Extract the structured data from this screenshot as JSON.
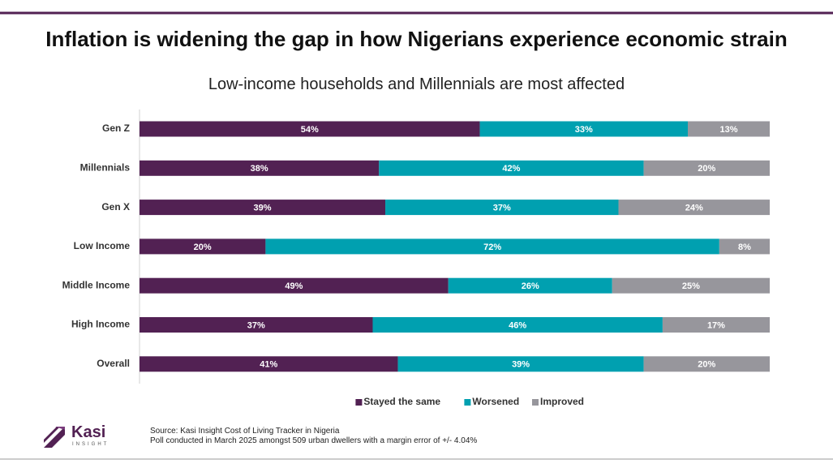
{
  "chart_data": {
    "type": "stacked-bar-horizontal",
    "title": "Inflation is widening the gap in how Nigerians experience economic strain",
    "subtitle": "Low-income households and Millennials are most affected",
    "categories": [
      "Gen Z",
      "Millennials",
      "Gen X",
      "Low Income",
      "Middle Income",
      "High Income",
      "Overall"
    ],
    "series": [
      {
        "name": "Stayed the same",
        "color": "#522153",
        "values": [
          54,
          38,
          39,
          20,
          49,
          37,
          41
        ],
        "value_labels": [
          "54%",
          "38%",
          "39%",
          "20%",
          "49%",
          "37%",
          "41%"
        ]
      },
      {
        "name": "Worsened",
        "color": "#00a0b0",
        "values": [
          33,
          42,
          37,
          72,
          26,
          46,
          39
        ],
        "value_labels": [
          "33%",
          "42%",
          "37%",
          "72%",
          "26%",
          "46%",
          "39%"
        ]
      },
      {
        "name": "Improved",
        "color": "#97969c",
        "values": [
          13,
          20,
          24,
          8,
          25,
          17,
          20
        ],
        "value_labels": [
          "13%",
          "20%",
          "24%",
          "8%",
          "25%",
          "17%",
          "20%"
        ]
      }
    ],
    "xlim": [
      0,
      100
    ],
    "legend": "bottom",
    "source": "Source: Kasi Insight Cost of Living Tracker in Nigeria",
    "note": "Poll conducted in March 2025 amongst  509 urban dwellers with a margin error of +/- 4.04%"
  },
  "logo": {
    "name": "Kasi",
    "tagline": "INSIGHT"
  }
}
